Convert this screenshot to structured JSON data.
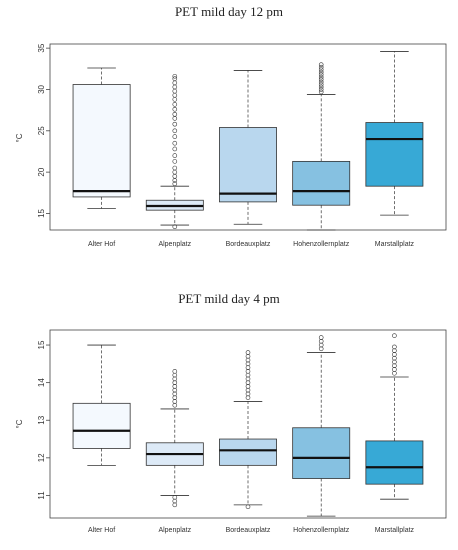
{
  "chart_data": [
    {
      "type": "boxplot",
      "title": "PET mild day 12 pm",
      "ylabel": "°C",
      "ylim": [
        13,
        35.5
      ],
      "yticks": [
        15,
        20,
        25,
        30,
        35
      ],
      "categories": [
        "Alter Hof",
        "Alpenplatz",
        "Bordeauxplatz",
        "Hohenzollernplatz",
        "Marstallplatz"
      ],
      "colors": [
        "#f4f9fe",
        "#ddeaf7",
        "#b9d7ee",
        "#86c1e1",
        "#37a9d6"
      ],
      "boxes": [
        {
          "whisker_low": 15.6,
          "q1": 17.0,
          "median": 17.7,
          "q3": 30.6,
          "whisker_high": 32.6,
          "outliers": []
        },
        {
          "whisker_low": 13.6,
          "q1": 15.4,
          "median": 15.9,
          "q3": 16.6,
          "whisker_high": 18.3,
          "outliers": [
            13.4,
            18.6,
            19.0,
            19.5,
            20.0,
            20.5,
            21.3,
            22.0,
            22.8,
            23.5,
            24.3,
            25.0,
            25.8,
            26.5,
            27.0,
            27.6,
            28.2,
            28.8,
            29.3,
            29.8,
            30.3,
            30.8,
            31.3,
            31.6
          ]
        },
        {
          "whisker_low": 13.7,
          "q1": 16.4,
          "median": 17.4,
          "q3": 25.4,
          "whisker_high": 32.3,
          "outliers": []
        },
        {
          "whisker_low": 13.0,
          "q1": 16.0,
          "median": 17.7,
          "q3": 21.3,
          "whisker_high": 29.4,
          "outliers": [
            29.7,
            30.0,
            30.3,
            30.6,
            30.9,
            31.2,
            31.5,
            31.8,
            32.1,
            32.4,
            32.7,
            33.0
          ]
        },
        {
          "whisker_low": 14.8,
          "q1": 18.3,
          "median": 24.0,
          "q3": 26.0,
          "whisker_high": 34.6,
          "outliers": []
        }
      ]
    },
    {
      "type": "boxplot",
      "title": "PET mild day 4 pm",
      "ylabel": "°C",
      "ylim": [
        10.4,
        15.4
      ],
      "yticks": [
        11,
        12,
        13,
        14,
        15
      ],
      "categories": [
        "Alter Hof",
        "Alpenplatz",
        "Bordeauxplatz",
        "Hohenzollernplatz",
        "Marstallplatz"
      ],
      "colors": [
        "#f4f9fe",
        "#ddeaf7",
        "#b9d7ee",
        "#86c1e1",
        "#37a9d6"
      ],
      "boxes": [
        {
          "whisker_low": 11.8,
          "q1": 12.25,
          "median": 12.72,
          "q3": 13.45,
          "whisker_high": 15.0,
          "outliers": []
        },
        {
          "whisker_low": 11.0,
          "q1": 11.8,
          "median": 12.1,
          "q3": 12.4,
          "whisker_high": 13.3,
          "outliers": [
            10.75,
            10.85,
            10.95,
            13.4,
            13.5,
            13.6,
            13.7,
            13.8,
            13.9,
            14.0,
            14.1,
            14.2,
            14.3
          ]
        },
        {
          "whisker_low": 10.75,
          "q1": 11.8,
          "median": 12.2,
          "q3": 12.5,
          "whisker_high": 13.5,
          "outliers": [
            10.7,
            13.6,
            13.7,
            13.8,
            13.9,
            14.0,
            14.1,
            14.2,
            14.3,
            14.4,
            14.5,
            14.6,
            14.7,
            14.8
          ]
        },
        {
          "whisker_low": 10.45,
          "q1": 11.45,
          "median": 12.0,
          "q3": 12.8,
          "whisker_high": 14.8,
          "outliers": [
            14.9,
            15.0,
            15.1,
            15.2
          ]
        },
        {
          "whisker_low": 10.9,
          "q1": 11.3,
          "median": 11.75,
          "q3": 12.45,
          "whisker_high": 14.15,
          "outliers": [
            14.25,
            14.35,
            14.45,
            14.55,
            14.65,
            14.75,
            14.85,
            14.95,
            15.25
          ]
        }
      ]
    }
  ]
}
